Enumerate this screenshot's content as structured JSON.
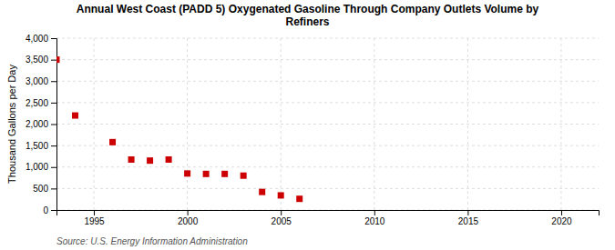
{
  "chart_data": {
    "type": "scatter",
    "title": "Annual West Coast (PADD 5) Oxygenated Gasoline Through Company Outlets Volume by\nRefiners",
    "ylabel": "Thousand Gallons per Day",
    "source": "Source: U.S. Energy Information Administration",
    "x": [
      1993,
      1994,
      1996,
      1997,
      1998,
      1999,
      2000,
      2001,
      2002,
      2003,
      2004,
      2005,
      2006
    ],
    "values": [
      3500,
      2200,
      1580,
      1175,
      1150,
      1175,
      850,
      840,
      840,
      800,
      420,
      340,
      260
    ],
    "color": "#cc0000",
    "marker": "square",
    "xlim": [
      1993,
      2022
    ],
    "ylim": [
      0,
      4000
    ],
    "xticks": [
      1995,
      2000,
      2005,
      2010,
      2015,
      2020
    ],
    "yticks": [
      0,
      500,
      {
        "value": 1000,
        "label": "1,000"
      },
      {
        "value": 1500,
        "label": "1,500"
      },
      {
        "value": 2000,
        "label": "2,000"
      },
      {
        "value": 2500,
        "label": "2,500"
      },
      {
        "value": 3000,
        "label": "3,000"
      },
      {
        "value": 3500,
        "label": "3,500"
      },
      {
        "value": 4000,
        "label": "4,000"
      }
    ],
    "grid": true
  }
}
